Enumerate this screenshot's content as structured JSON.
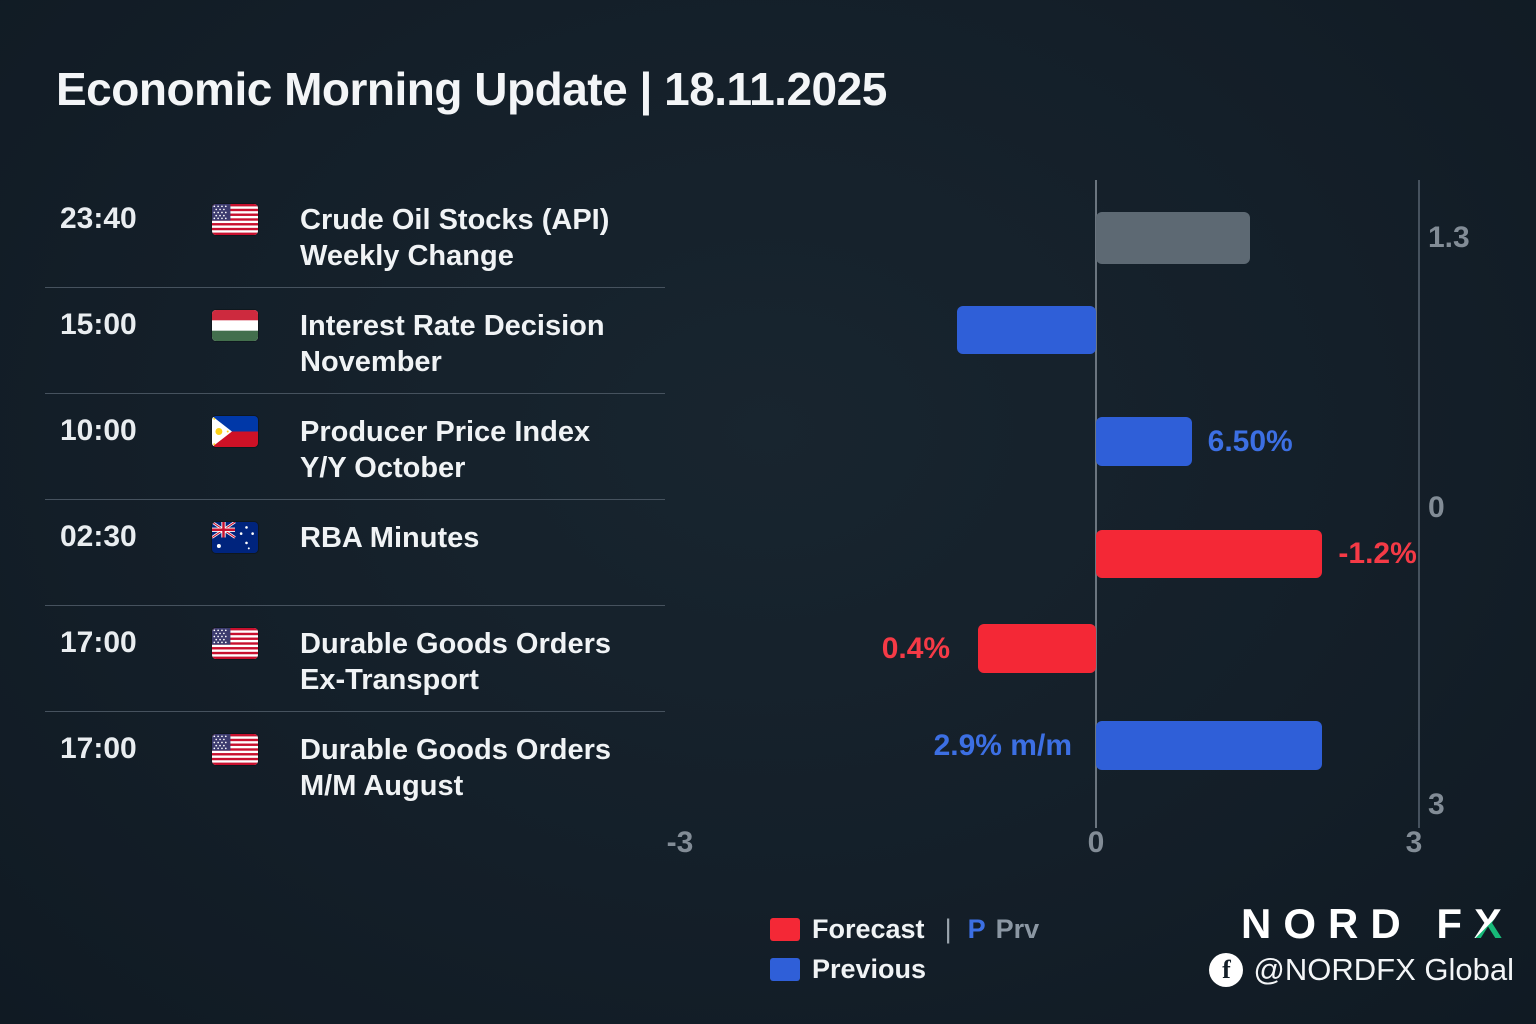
{
  "title": "Economic Morning Update | 18.11.2025",
  "events": [
    {
      "time": "23:40",
      "flag": "us-flag",
      "name_lines": [
        "Crude Oil Stocks (API)",
        "Weekly Change"
      ]
    },
    {
      "time": "15:00",
      "flag": "hungary-flag",
      "name_lines": [
        "Interest Rate Decision",
        "November"
      ]
    },
    {
      "time": "10:00",
      "flag": "philippines-flag",
      "name_lines": [
        "Producer Price Index",
        "Y/Y October"
      ]
    },
    {
      "time": "02:30",
      "flag": "australia-flag",
      "name_lines": [
        "RBA Minutes",
        ""
      ]
    },
    {
      "time": "17:00",
      "flag": "us-flag",
      "name_lines": [
        "Durable Goods Orders",
        "Ex-Transport"
      ]
    },
    {
      "time": "17:00",
      "flag": "us-flag",
      "name_lines": [
        "Durable Goods Orders",
        "M/M August"
      ]
    }
  ],
  "chart_data": {
    "type": "bar",
    "orientation": "horizontal",
    "categories": [
      "Crude Oil Stocks (API) Weekly Change",
      "Interest Rate Decision November",
      "Producer Price Index Y/Y October",
      "RBA Minutes",
      "Durable Goods Orders Ex-Transport",
      "Durable Goods Orders M/M August"
    ],
    "bars": [
      {
        "category": "Crude Oil Stocks (API) Weekly Change",
        "value": 1.45,
        "series": "neutral",
        "color": "#5d6973",
        "label": "",
        "label_color": "",
        "label_pos": ""
      },
      {
        "category": "Interest Rate Decision November",
        "value": -1.0,
        "series": "previous",
        "color": "#2f5fd8",
        "label": "",
        "label_color": "",
        "label_pos": ""
      },
      {
        "category": "Producer Price Index Y/Y October",
        "value": 0.9,
        "series": "previous",
        "color": "#2f5fd8",
        "label": "6.50%",
        "label_color": "#3c6fe3",
        "label_pos": "right-of-bar"
      },
      {
        "category": "RBA Minutes",
        "value": 2.13,
        "series": "forecast",
        "color": "#f42836",
        "label": "-1.2%",
        "label_color": "#f53a46",
        "label_pos": "right-of-bar"
      },
      {
        "category": "Durable Goods Orders Ex-Transport",
        "value": -0.85,
        "series": "forecast",
        "color": "#f42836",
        "label": "0.4%",
        "label_color": "#f53a46",
        "label_pos": "left-of-bar"
      },
      {
        "category": "Durable Goods Orders M/M August",
        "value": 2.13,
        "series": "previous",
        "color": "#2f5fd8",
        "label": "2.9% m/m",
        "label_color": "#3c6fe3",
        "label_pos": "left-of-zero"
      }
    ],
    "x_axis": {
      "ticks": [
        "-3",
        "0",
        "3"
      ],
      "range": [
        -3,
        3
      ]
    },
    "right_axis_labels": [
      "1.3",
      "0",
      "3"
    ],
    "colors": {
      "forecast": "#f42836",
      "previous": "#2f5fd8",
      "neutral": "#5d6973"
    },
    "grid": false,
    "legend_position": "bottom"
  },
  "legend": {
    "forecast_label": "Forecast",
    "separator": "|",
    "prv_p": "P",
    "prv_label": "Prv",
    "previous_label": "Previous"
  },
  "branding": {
    "logo_main": "NORD F",
    "logo_accent": "X",
    "facebook_icon": "facebook-icon",
    "facebook_glyph": "f",
    "social_handle": "@NORDFX Global"
  }
}
